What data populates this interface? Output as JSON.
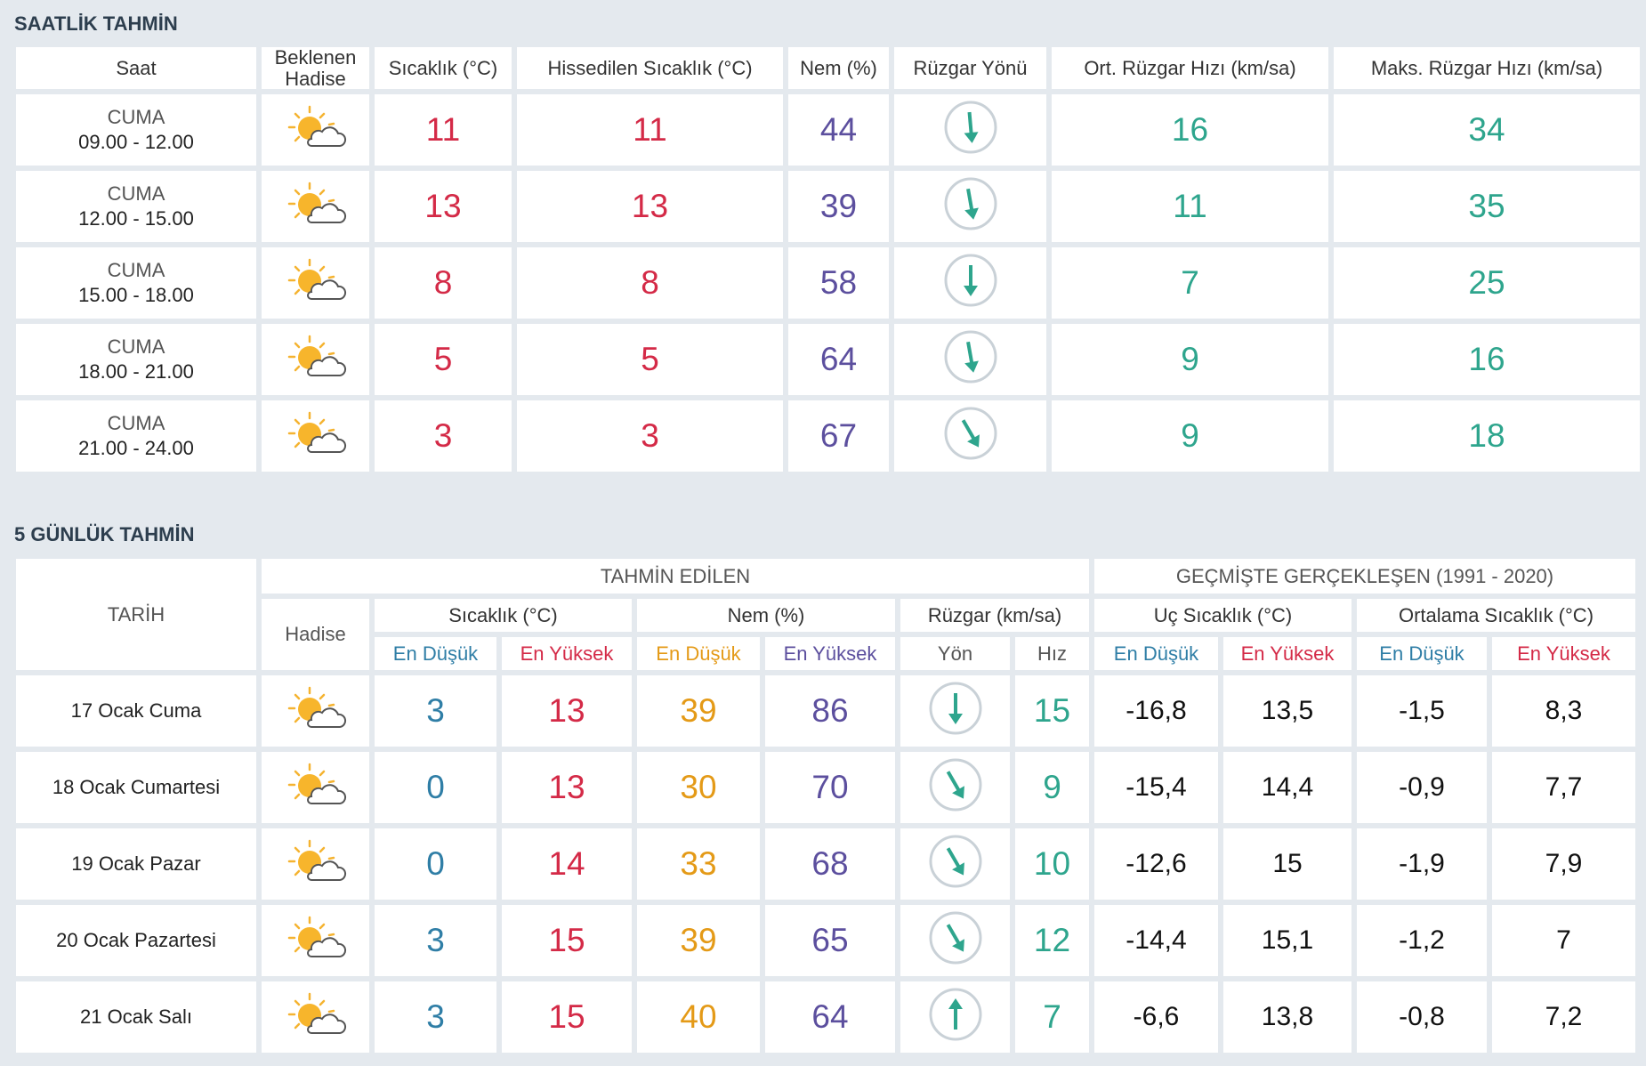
{
  "hourly": {
    "title": "SAATLİK TAHMİN",
    "headers": [
      "Saat",
      "Beklenen Hadise",
      "Sıcaklık (°C)",
      "Hissedilen Sıcaklık (°C)",
      "Nem (%)",
      "Rüzgar Yönü",
      "Ort. Rüzgar Hızı (km/sa)",
      "Maks. Rüzgar Hızı (km/sa)"
    ],
    "rows": [
      {
        "day": "CUMA",
        "time": "09.00 - 12.00",
        "temp": 11,
        "feels": 11,
        "humidity": 44,
        "wind_angle": -5,
        "wind_avg": 16,
        "wind_max": 34
      },
      {
        "day": "CUMA",
        "time": "12.00 - 15.00",
        "temp": 13,
        "feels": 13,
        "humidity": 39,
        "wind_angle": -10,
        "wind_avg": 11,
        "wind_max": 35
      },
      {
        "day": "CUMA",
        "time": "15.00 - 18.00",
        "temp": 8,
        "feels": 8,
        "humidity": 58,
        "wind_angle": 0,
        "wind_avg": 7,
        "wind_max": 25
      },
      {
        "day": "CUMA",
        "time": "18.00 - 21.00",
        "temp": 5,
        "feels": 5,
        "humidity": 64,
        "wind_angle": -10,
        "wind_avg": 9,
        "wind_max": 16
      },
      {
        "day": "CUMA",
        "time": "21.00 - 24.00",
        "temp": 3,
        "feels": 3,
        "humidity": 67,
        "wind_angle": -30,
        "wind_avg": 9,
        "wind_max": 18
      }
    ]
  },
  "daily": {
    "title": "5 GÜNLÜK TAHMİN",
    "date_header": "TARİH",
    "event_header": "Hadise",
    "forecast_header": "TAHMİN EDİLEN",
    "past_header": "GEÇMİŞTE GERÇEKLEŞEN (1991 - 2020)",
    "group_headers": [
      "Sıcaklık (°C)",
      "Nem (%)",
      "Rüzgar (km/sa)",
      "Uç Sıcaklık (°C)",
      "Ortalama Sıcaklık (°C)"
    ],
    "sub_headers": [
      "En Düşük",
      "En Yüksek",
      "En Düşük",
      "En Yüksek",
      "Yön",
      "Hız",
      "En Düşük",
      "En Yüksek",
      "En Düşük",
      "En Yüksek"
    ],
    "rows": [
      {
        "date": "17 Ocak Cuma",
        "tmin": 3,
        "tmax": 13,
        "hmin": 39,
        "hmax": 86,
        "wind_angle": 0,
        "wind_speed": 15,
        "ext_min": "-16,8",
        "ext_max": "13,5",
        "avg_min": "-1,5",
        "avg_max": "8,3"
      },
      {
        "date": "18 Ocak Cumartesi",
        "tmin": 0,
        "tmax": 13,
        "hmin": 30,
        "hmax": 70,
        "wind_angle": -30,
        "wind_speed": 9,
        "ext_min": "-15,4",
        "ext_max": "14,4",
        "avg_min": "-0,9",
        "avg_max": "7,7"
      },
      {
        "date": "19 Ocak Pazar",
        "tmin": 0,
        "tmax": 14,
        "hmin": 33,
        "hmax": 68,
        "wind_angle": -30,
        "wind_speed": 10,
        "ext_min": "-12,6",
        "ext_max": 15,
        "avg_min": "-1,9",
        "avg_max": "7,9"
      },
      {
        "date": "20 Ocak Pazartesi",
        "tmin": 3,
        "tmax": 15,
        "hmin": 39,
        "hmax": 65,
        "wind_angle": -30,
        "wind_speed": 12,
        "ext_min": "-14,4",
        "ext_max": "15,1",
        "avg_min": "-1,2",
        "avg_max": 7
      },
      {
        "date": "21 Ocak Salı",
        "tmin": 3,
        "tmax": 15,
        "hmin": 40,
        "hmax": 64,
        "wind_angle": 180,
        "wind_speed": 7,
        "ext_min": "-6,6",
        "ext_max": "13,8",
        "avg_min": "-0,8",
        "avg_max": "7,2"
      }
    ]
  }
}
